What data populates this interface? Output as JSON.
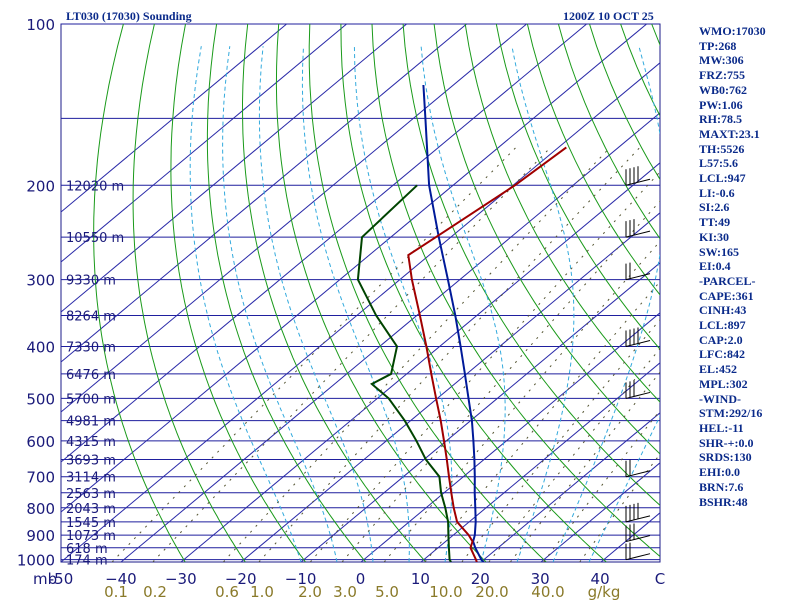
{
  "header": {
    "station_title": "LT030 (17030) Sounding",
    "valid_time": "1200Z 10 OCT 25"
  },
  "stats": [
    "WMO:17030",
    "TP:268",
    "MW:306",
    "FRZ:755",
    "WB0:762",
    "PW:1.06",
    "RH:78.5",
    "MAXT:23.1",
    "TH:5526",
    "L57:5.6",
    "LCL:947",
    "LI:-0.6",
    "SI:2.6",
    "TT:49",
    "KI:30",
    "SW:165",
    "EI:0.4",
    "-PARCEL-",
    "CAPE:361",
    "CINH:43",
    "LCL:897",
    "CAP:2.0",
    "LFC:842",
    "EL:452",
    "MPL:302",
    "-WIND-",
    "STM:292/16",
    "HEL:-11",
    "SHR-+:0.0",
    "SRDS:130",
    "EHI:0.0",
    "BRN:7.6",
    "BSHR:48"
  ],
  "chart_data": {
    "type": "skew-t",
    "title": "LT030 (17030) Sounding",
    "pressure_axis": {
      "label": "mb",
      "range": [
        100,
        1000
      ],
      "ticks": [
        100,
        200,
        300,
        400,
        500,
        600,
        700,
        800,
        900,
        1000
      ]
    },
    "temperature_axis": {
      "unit": "°C",
      "range": [
        -50,
        50
      ],
      "ticks": [
        -50,
        -40,
        -30,
        -20,
        -10,
        0,
        10,
        20,
        30,
        40
      ],
      "tick_labels": [
        "-50",
        "−40",
        "−30",
        "−20",
        "−10",
        "0",
        "10",
        "20",
        "30",
        "40",
        "C"
      ]
    },
    "mixing_ratio_axis": {
      "unit": "g/kg",
      "ticks": [
        0.1,
        0.2,
        0.6,
        1.0,
        2.0,
        3.0,
        5.0,
        10.0,
        20.0,
        40.0
      ],
      "tick_labels": [
        "0.1",
        "0.2",
        "0.6",
        "1.0",
        "2.0",
        "3.0",
        "5.0",
        "10.0",
        "20.0",
        "40.0",
        "g/kg"
      ]
    },
    "height_labels": [
      {
        "p": 200,
        "label": "12020 m"
      },
      {
        "p": 250,
        "label": "10550 m"
      },
      {
        "p": 300,
        "label": "9330 m"
      },
      {
        "p": 350,
        "label": "8264 m"
      },
      {
        "p": 400,
        "label": "7330 m"
      },
      {
        "p": 450,
        "label": "6476 m"
      },
      {
        "p": 500,
        "label": "5700 m"
      },
      {
        "p": 550,
        "label": "4981 m"
      },
      {
        "p": 600,
        "label": "4315 m"
      },
      {
        "p": 650,
        "label": "3693 m"
      },
      {
        "p": 700,
        "label": "3114 m"
      },
      {
        "p": 750,
        "label": "2563 m"
      },
      {
        "p": 800,
        "label": "2043 m"
      },
      {
        "p": 850,
        "label": "1545 m"
      },
      {
        "p": 900,
        "label": "1073 m"
      },
      {
        "p": 950,
        "label": "618 m"
      },
      {
        "p": 1000,
        "label": "174 m"
      }
    ],
    "temperature": {
      "name": "Temperature",
      "color": "#a00000",
      "points": [
        [
          1010,
          19.3
        ],
        [
          1000,
          18.7
        ],
        [
          950,
          15.4
        ],
        [
          925,
          14.5
        ],
        [
          900,
          12.6
        ],
        [
          850,
          8.0
        ],
        [
          800,
          4.6
        ],
        [
          750,
          1.2
        ],
        [
          700,
          -2.4
        ],
        [
          650,
          -6.2
        ],
        [
          600,
          -10.4
        ],
        [
          550,
          -15.0
        ],
        [
          500,
          -20.2
        ],
        [
          450,
          -25.9
        ],
        [
          400,
          -32.2
        ],
        [
          350,
          -39.5
        ],
        [
          300,
          -48.0
        ],
        [
          270,
          -53.5
        ],
        [
          250,
          -52.5
        ],
        [
          200,
          -49.7
        ],
        [
          170,
          -48.7
        ]
      ]
    },
    "dewpoint": {
      "name": "Dewpoint",
      "color": "#004400",
      "points": [
        [
          1010,
          15.0
        ],
        [
          1000,
          14.3
        ],
        [
          950,
          11.8
        ],
        [
          900,
          9.2
        ],
        [
          850,
          6.5
        ],
        [
          800,
          3.2
        ],
        [
          750,
          -0.5
        ],
        [
          700,
          -4.0
        ],
        [
          650,
          -9.7
        ],
        [
          600,
          -15.0
        ],
        [
          550,
          -21.0
        ],
        [
          500,
          -28.1
        ],
        [
          470,
          -33.8
        ],
        [
          450,
          -32.6
        ],
        [
          400,
          -37.1
        ],
        [
          350,
          -46.8
        ],
        [
          300,
          -57.0
        ],
        [
          250,
          -64.8
        ],
        [
          200,
          -66.0
        ]
      ]
    },
    "parcel": {
      "name": "Parcel path",
      "color": "#001a99",
      "points": [
        [
          1010,
          20.4
        ],
        [
          1000,
          19.6
        ],
        [
          950,
          16.2
        ],
        [
          925,
          14.6
        ],
        [
          900,
          13.6
        ],
        [
          850,
          11.1
        ],
        [
          800,
          8.2
        ],
        [
          750,
          5.1
        ],
        [
          700,
          1.9
        ],
        [
          650,
          -1.6
        ],
        [
          600,
          -5.5
        ],
        [
          550,
          -9.8
        ],
        [
          500,
          -14.8
        ],
        [
          450,
          -20.3
        ],
        [
          400,
          -26.5
        ],
        [
          350,
          -33.6
        ],
        [
          300,
          -42.0
        ],
        [
          250,
          -52.0
        ],
        [
          200,
          -64.0
        ],
        [
          150,
          -78.0
        ],
        [
          130,
          -85.0
        ]
      ]
    },
    "wind_levels_mb": [
      1000,
      925,
      850,
      700,
      500,
      400,
      300,
      250,
      200
    ]
  }
}
